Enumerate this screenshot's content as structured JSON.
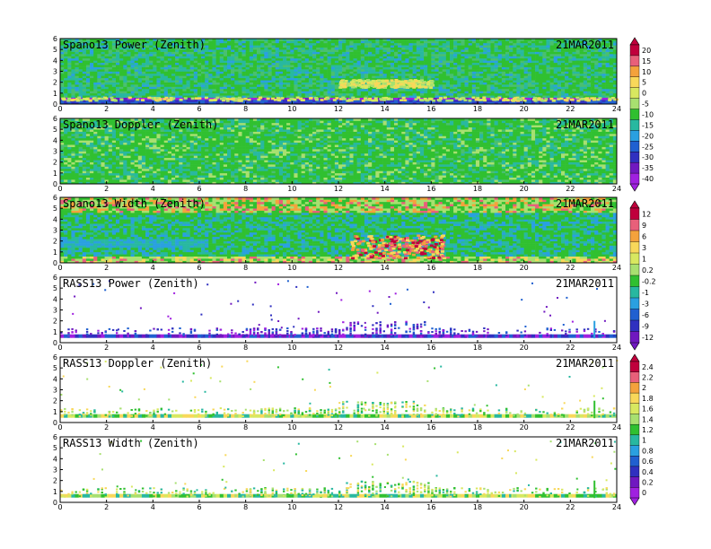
{
  "chart_data": [
    {
      "type": "heatmap",
      "title": "Spano13 Power (Zenith)",
      "date": "21MAR2011",
      "xlim": [
        0,
        24
      ],
      "ylim": [
        0,
        6
      ],
      "xticks": [
        "0",
        "2",
        "4",
        "6",
        "8",
        "10",
        "12",
        "14",
        "16",
        "18",
        "20",
        "22",
        "24"
      ],
      "yticks": [
        "0",
        "1",
        "2",
        "3",
        "4",
        "5",
        "6"
      ],
      "fill": "dense",
      "colorbar": "power",
      "features": [
        {
          "desc": "strong low layer",
          "y": [
            0.4,
            0.7
          ],
          "x": [
            0,
            24
          ],
          "value": -40
        },
        {
          "desc": "enhanced layer",
          "y": [
            1.6,
            2.3
          ],
          "x": [
            12,
            16
          ],
          "value": 5
        }
      ]
    },
    {
      "type": "heatmap",
      "title": "Spano13 Doppler (Zenith)",
      "date": "21MAR2011",
      "xlim": [
        0,
        24
      ],
      "ylim": [
        0,
        6
      ],
      "xticks": [
        "0",
        "2",
        "4",
        "6",
        "8",
        "10",
        "12",
        "14",
        "16",
        "18",
        "20",
        "22",
        "24"
      ],
      "yticks": [
        "0",
        "1",
        "2",
        "3",
        "4",
        "5",
        "6"
      ],
      "fill": "dense",
      "colorbar": "power"
    },
    {
      "type": "heatmap",
      "title": "Spano13 Width (Zenith)",
      "date": "21MAR2011",
      "xlim": [
        0,
        24
      ],
      "ylim": [
        0,
        6
      ],
      "xticks": [
        "0",
        "2",
        "4",
        "6",
        "8",
        "10",
        "12",
        "14",
        "16",
        "18",
        "20",
        "22",
        "24"
      ],
      "yticks": [
        "0",
        "1",
        "2",
        "3",
        "4",
        "5",
        "6"
      ],
      "fill": "dense",
      "colorbar": "width",
      "features": [
        {
          "desc": "high width patch",
          "y": [
            0.5,
            2.6
          ],
          "x": [
            12.5,
            16.5
          ],
          "value": 9
        }
      ]
    },
    {
      "type": "heatmap",
      "title": "RASS13 Power (Zenith)",
      "date": "21MAR2011",
      "xlim": [
        0,
        24
      ],
      "ylim": [
        0,
        6
      ],
      "xticks": [
        "0",
        "2",
        "4",
        "6",
        "8",
        "10",
        "12",
        "14",
        "16",
        "18",
        "20",
        "22",
        "24"
      ],
      "yticks": [
        "0",
        "1",
        "2",
        "3",
        "4",
        "5",
        "6"
      ],
      "fill": "sparse",
      "colorbar": "width"
    },
    {
      "type": "heatmap",
      "title": "RASS13 Doppler (Zenith)",
      "date": "21MAR2011",
      "xlim": [
        0,
        24
      ],
      "ylim": [
        0,
        6
      ],
      "xticks": [
        "0",
        "2",
        "4",
        "6",
        "8",
        "10",
        "12",
        "14",
        "16",
        "18",
        "20",
        "22",
        "24"
      ],
      "yticks": [
        "0",
        "1",
        "2",
        "3",
        "4",
        "5",
        "6"
      ],
      "fill": "sparse",
      "colorbar": "rass"
    },
    {
      "type": "heatmap",
      "title": "RASS13 Width (Zenith)",
      "date": "21MAR2011",
      "xlim": [
        0,
        24
      ],
      "ylim": [
        0,
        6
      ],
      "xticks": [
        "0",
        "2",
        "4",
        "6",
        "8",
        "10",
        "12",
        "14",
        "16",
        "18",
        "20",
        "22",
        "24"
      ],
      "yticks": [
        "0",
        "1",
        "2",
        "3",
        "4",
        "5",
        "6"
      ],
      "fill": "sparse",
      "colorbar": "rass"
    }
  ],
  "colorbars": {
    "power": {
      "labels": [
        "20",
        "15",
        "10",
        "5",
        "0",
        "-5",
        "-10",
        "-15",
        "-20",
        "-25",
        "-30",
        "-35",
        "-40"
      ],
      "colors": [
        "#c0003c",
        "#e8607a",
        "#f4a23c",
        "#f8d85a",
        "#d8e860",
        "#a8e070",
        "#30c030",
        "#28b8a0",
        "#2aa0e0",
        "#2060d0",
        "#3030c0",
        "#7018c0",
        "#a020e0"
      ]
    },
    "width": {
      "labels": [
        "12",
        "9",
        "6",
        "3",
        "1",
        "0.2",
        "-0.2",
        "-1",
        "-3",
        "-6",
        "-9",
        "-12"
      ],
      "colors": [
        "#c0003c",
        "#e8607a",
        "#f4a23c",
        "#f8d85a",
        "#d8e860",
        "#a8e070",
        "#30c030",
        "#28b8a0",
        "#2aa0e0",
        "#2060d0",
        "#3030c0",
        "#7018c0"
      ]
    },
    "rass": {
      "labels": [
        "2.4",
        "2.2",
        "2",
        "1.8",
        "1.6",
        "1.4",
        "1.2",
        "1",
        "0.8",
        "0.6",
        "0.4",
        "0.2",
        "0"
      ],
      "colors": [
        "#c0003c",
        "#e8607a",
        "#f4a23c",
        "#f8d85a",
        "#d8e860",
        "#a8e070",
        "#30c030",
        "#28b8a0",
        "#2aa0e0",
        "#2060d0",
        "#3030c0",
        "#7018c0",
        "#a020e0"
      ]
    }
  }
}
